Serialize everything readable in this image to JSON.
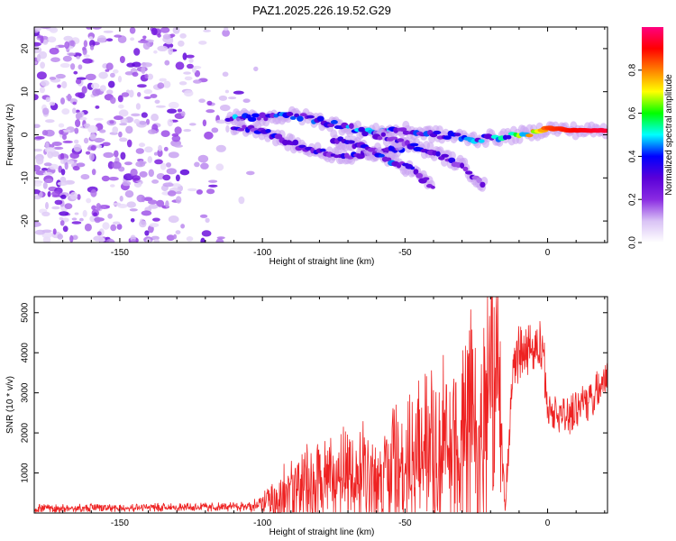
{
  "title": "PAZ1.2025.226.19.52.G29",
  "chart_data": [
    {
      "type": "heatmap",
      "xlabel": "Height of straight line (km)",
      "ylabel": "Frequency (Hz)",
      "xlim": [
        -180,
        21
      ],
      "ylim": [
        -25,
        25
      ],
      "xticks": [
        -150,
        -100,
        -50,
        0
      ],
      "xtick_labels": [
        "-150",
        "-100",
        "-50",
        "0"
      ],
      "yticks": [
        -20,
        -10,
        0,
        10,
        20
      ],
      "ytick_labels": [
        "-20",
        "-10",
        "0",
        "10",
        "20"
      ],
      "colorbar": {
        "label": "Normalized spectral amplitude",
        "range": [
          0,
          1
        ],
        "ticks": [
          0.0,
          0.2,
          0.4,
          0.6,
          0.8
        ],
        "tick_labels": [
          "0.0",
          "0.2",
          "0.4",
          "0.6",
          "0.8"
        ],
        "colors": [
          "#ffffff",
          "#d9c2f5",
          "#8a2be2",
          "#5a00d8",
          "#0000ff",
          "#00ffff",
          "#00ff00",
          "#ffff00",
          "#ff8000",
          "#ff0000",
          "#ff0080"
        ]
      },
      "ridges": [
        {
          "x": [
            -112,
            -100,
            -88,
            -75,
            -62,
            -50,
            -38,
            -25,
            -15,
            -5,
            0,
            10,
            21
          ],
          "y": [
            4.0,
            4.0,
            4.5,
            2.5,
            0.5,
            1.0,
            0.0,
            -1.0,
            -0.5,
            0.5,
            1.5,
            1.0,
            1.0
          ],
          "amp": [
            0.35,
            0.35,
            0.35,
            0.32,
            0.38,
            0.32,
            0.32,
            0.35,
            0.4,
            0.6,
            0.85,
            0.9,
            0.95
          ]
        },
        {
          "x": [
            -110,
            -100,
            -90,
            -80,
            -70,
            -60,
            -50
          ],
          "y": [
            2.0,
            1.0,
            -2.0,
            -4.0,
            -5.0,
            -4.0,
            -3.0
          ],
          "amp": [
            0.3,
            0.28,
            0.3,
            0.28,
            0.3,
            0.28,
            0.3
          ]
        },
        {
          "x": [
            -75,
            -65,
            -55,
            -48,
            -40
          ],
          "y": [
            -1.0,
            -3.0,
            -6.0,
            -8.0,
            -12.0
          ],
          "amp": [
            0.3,
            0.3,
            0.32,
            0.3,
            0.25
          ]
        },
        {
          "x": [
            -60,
            -50,
            -40,
            -30,
            -22
          ],
          "y": [
            0.0,
            -2.0,
            -4.0,
            -7.0,
            -12.0
          ],
          "amp": [
            0.25,
            0.28,
            0.3,
            0.25,
            0.2
          ]
        }
      ],
      "noise_region_x": [
        -180,
        -100
      ]
    },
    {
      "type": "line",
      "xlabel": "Height of straight line (km)",
      "ylabel": "SNR (10 * v/v)",
      "xlim": [
        -180,
        21
      ],
      "ylim": [
        0,
        5400
      ],
      "xticks": [
        -150,
        -100,
        -50,
        0
      ],
      "xtick_labels": [
        "-150",
        "-100",
        "-50",
        "0"
      ],
      "yticks": [
        1000,
        2000,
        3000,
        4000,
        5000
      ],
      "ytick_labels": [
        "1000",
        "2000",
        "3000",
        "4000",
        "5000"
      ],
      "series": [
        {
          "color": "#ee2222",
          "envelope_x": [
            -180,
            -110,
            -100,
            -95,
            -90,
            -80,
            -70,
            -60,
            -50,
            -40,
            -30,
            -25,
            -20,
            -17,
            -15,
            -12,
            -10,
            -7,
            -5,
            -2,
            0,
            5,
            10,
            15,
            21
          ],
          "envelope_base": [
            120,
            150,
            200,
            300,
            500,
            700,
            800,
            900,
            1000,
            1200,
            1500,
            1800,
            2200,
            2600,
            100,
            3600,
            3800,
            3900,
            4000,
            4200,
            2600,
            2400,
            2500,
            2900,
            3400
          ],
          "envelope_spread": [
            100,
            120,
            200,
            600,
            800,
            900,
            1000,
            1200,
            1400,
            1800,
            2200,
            2600,
            3000,
            2500,
            300,
            600,
            700,
            600,
            500,
            700,
            400,
            500,
            600,
            600,
            400
          ]
        }
      ]
    }
  ]
}
